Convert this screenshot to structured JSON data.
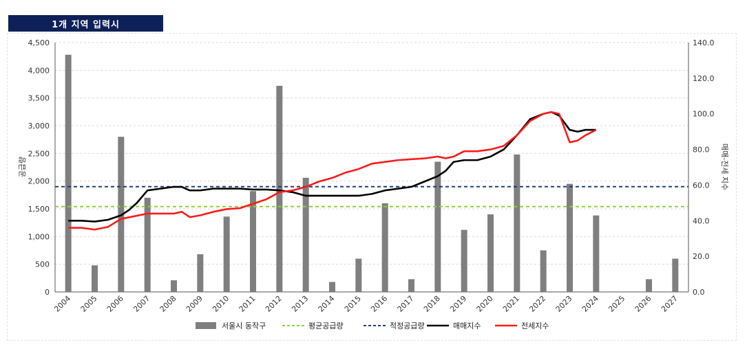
{
  "header": {
    "title": "1개 지역 입력시"
  },
  "chart_data": {
    "type": "bar",
    "title": "",
    "ylabel": "공급량",
    "y2label": "매매-전세 지수",
    "ylim": [
      0,
      4500
    ],
    "y2lim": [
      0,
      140
    ],
    "grid": true,
    "legend_position": "bottom",
    "categories": [
      "2004",
      "2005",
      "2006",
      "2007",
      "2008",
      "2009",
      "2010",
      "2011",
      "2012",
      "2013",
      "2014",
      "2015",
      "2016",
      "2017",
      "2018",
      "2019",
      "2020",
      "2021",
      "2022",
      "2023",
      "2024",
      "2025",
      "2026",
      "2027"
    ],
    "y_ticks": [
      "4,500",
      "4,000",
      "3,500",
      "3,000",
      "2,500",
      "2,000",
      "1,500",
      "1,000",
      "500",
      "0"
    ],
    "y2_ticks": [
      "140.0",
      "120.0",
      "100.0",
      "80.0",
      "60.0",
      "40.0",
      "20.0",
      "0.0"
    ],
    "bar_series": {
      "name": "서울시 동작구",
      "color": "#7f7f7f",
      "values": [
        4280,
        480,
        2800,
        1700,
        210,
        680,
        1360,
        1820,
        3720,
        2060,
        180,
        600,
        1600,
        230,
        2350,
        1120,
        1400,
        2480,
        750,
        1950,
        1380,
        0,
        230,
        600
      ]
    },
    "hlines": [
      {
        "name": "평균공급량",
        "value": 1540,
        "color": "#8fce3b",
        "style": "dashed"
      },
      {
        "name": "적정공급량",
        "value": 1900,
        "color": "#1f3a7a",
        "style": "dashed"
      }
    ],
    "line_series": [
      {
        "name": "매매지수",
        "color": "#000000",
        "x": [
          2004.0,
          2004.5,
          2005.0,
          2005.5,
          2006.0,
          2006.3,
          2006.6,
          2007.0,
          2007.5,
          2008.0,
          2008.3,
          2008.6,
          2009.0,
          2009.5,
          2010.0,
          2010.5,
          2011.0,
          2011.5,
          2012.0,
          2012.5,
          2013.0,
          2013.5,
          2014.0,
          2014.5,
          2015.0,
          2015.5,
          2016.0,
          2016.5,
          2017.0,
          2017.5,
          2018.0,
          2018.3,
          2018.6,
          2019.0,
          2019.5,
          2020.0,
          2020.5,
          2021.0,
          2021.5,
          2022.0,
          2022.3,
          2022.6,
          2023.0,
          2023.3,
          2023.6,
          2024.0
        ],
        "y": [
          40,
          40,
          39.5,
          40.5,
          43,
          46,
          50,
          57,
          58,
          59,
          59,
          57,
          57,
          58,
          58,
          58,
          57.5,
          57.5,
          57,
          56,
          54,
          54,
          54,
          54,
          54,
          55,
          57,
          58,
          59,
          62,
          65,
          68,
          73,
          74,
          74,
          76,
          80,
          88,
          97,
          100,
          101,
          99,
          91,
          90,
          91,
          91
        ]
      },
      {
        "name": "전세지수",
        "color": "#ff1a1a",
        "x": [
          2004.0,
          2004.5,
          2005.0,
          2005.5,
          2006.0,
          2006.5,
          2007.0,
          2007.5,
          2008.0,
          2008.3,
          2008.6,
          2009.0,
          2009.5,
          2010.0,
          2010.5,
          2011.0,
          2011.5,
          2012.0,
          2012.5,
          2013.0,
          2013.5,
          2014.0,
          2014.5,
          2015.0,
          2015.5,
          2016.0,
          2016.5,
          2017.0,
          2017.5,
          2018.0,
          2018.3,
          2018.6,
          2019.0,
          2019.5,
          2020.0,
          2020.5,
          2021.0,
          2021.5,
          2022.0,
          2022.3,
          2022.6,
          2023.0,
          2023.3,
          2023.6,
          2024.0
        ],
        "y": [
          36,
          36,
          35,
          36.5,
          41,
          42.5,
          44,
          44,
          44,
          45,
          42,
          43,
          45,
          46.5,
          47,
          49.5,
          52,
          56,
          57,
          59,
          62,
          64,
          67,
          69,
          72,
          73,
          74,
          74.5,
          75,
          76,
          75,
          76,
          79,
          79,
          80,
          82,
          88,
          96,
          100,
          101,
          100,
          84,
          85,
          88,
          91
        ]
      }
    ],
    "legend": [
      "서울시 동작구",
      "평균공급량",
      "적정공급량",
      "매매지수",
      "전세지수"
    ]
  }
}
